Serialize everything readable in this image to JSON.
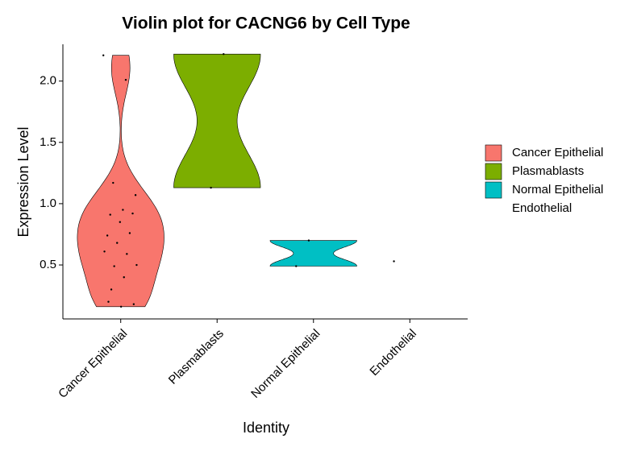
{
  "chart_data": {
    "type": "violin",
    "title": "Violin plot for CACNG6 by Cell Type",
    "x_label": "Identity",
    "y_label": "Expression Level",
    "categories": [
      "Cancer Epithelial",
      "Plasmablasts",
      "Normal Epithelial",
      "Endothelial"
    ],
    "series": [
      {
        "name": "Cancer Epithelial",
        "color": "#F8766D",
        "values": [
          2.21,
          2.01,
          1.17,
          1.07,
          0.95,
          0.91,
          0.92,
          0.85,
          0.74,
          0.76,
          0.68,
          0.61,
          0.59,
          0.49,
          0.5,
          0.4,
          0.3,
          0.18,
          0.16,
          0.2
        ]
      },
      {
        "name": "Plasmablasts",
        "color": "#7CAE00",
        "values": [
          2.22,
          1.13
        ]
      },
      {
        "name": "Normal Epithelial",
        "color": "#00BFC4",
        "values": [
          0.7,
          0.49
        ]
      },
      {
        "name": "Endothelial",
        "values": [
          0.53
        ]
      }
    ],
    "ylim": [
      0.06,
      2.3
    ],
    "yticks": [
      0.5,
      1.0,
      1.5,
      2.0
    ],
    "legend": "right"
  }
}
